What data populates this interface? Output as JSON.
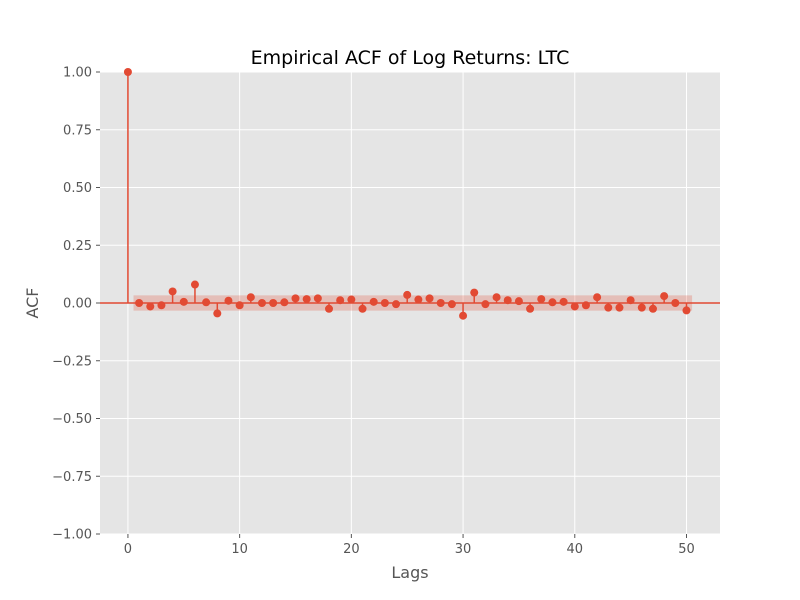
{
  "chart_data": {
    "type": "stem",
    "title": "Empirical ACF of Log Returns: LTC",
    "xlabel": "Lags",
    "ylabel": "ACF",
    "xlim": [
      -2.5,
      53
    ],
    "ylim": [
      -1.0,
      1.0
    ],
    "xticks": [
      0,
      10,
      20,
      30,
      40,
      50
    ],
    "xtick_labels": [
      "0",
      "10",
      "20",
      "30",
      "40",
      "50"
    ],
    "yticks": [
      -1.0,
      -0.75,
      -0.5,
      -0.25,
      0.0,
      0.25,
      0.5,
      0.75,
      1.0
    ],
    "ytick_labels": [
      "−1.00",
      "−0.75",
      "−0.50",
      "−0.25",
      "0.00",
      "0.25",
      "0.50",
      "0.75",
      "1.00"
    ],
    "grid": true,
    "colors": {
      "series": "#E24A33",
      "band": "#E24A33",
      "background": "#E5E5E5",
      "grid": "#FFFFFF"
    },
    "confidence_band": {
      "lower": -0.033,
      "upper": 0.033,
      "from_lag": 0.5,
      "to_lag": 50.5
    },
    "x": [
      0,
      1,
      2,
      3,
      4,
      5,
      6,
      7,
      8,
      9,
      10,
      11,
      12,
      13,
      14,
      15,
      16,
      17,
      18,
      19,
      20,
      21,
      22,
      23,
      24,
      25,
      26,
      27,
      28,
      29,
      30,
      31,
      32,
      33,
      34,
      35,
      36,
      37,
      38,
      39,
      40,
      41,
      42,
      43,
      44,
      45,
      46,
      47,
      48,
      49,
      50
    ],
    "values": [
      1.0,
      0.0,
      -0.015,
      -0.01,
      0.05,
      0.005,
      0.08,
      0.003,
      -0.045,
      0.01,
      -0.01,
      0.025,
      0.0,
      0.0,
      0.003,
      0.02,
      0.017,
      0.02,
      -0.025,
      0.012,
      0.015,
      -0.025,
      0.005,
      0.0,
      -0.005,
      0.035,
      0.015,
      0.02,
      0.0,
      -0.005,
      -0.055,
      0.045,
      -0.005,
      0.025,
      0.012,
      0.008,
      -0.025,
      0.017,
      0.003,
      0.005,
      -0.015,
      -0.01,
      0.025,
      -0.02,
      -0.02,
      0.012,
      -0.02,
      -0.025,
      0.03,
      0.0,
      -0.032
    ]
  }
}
